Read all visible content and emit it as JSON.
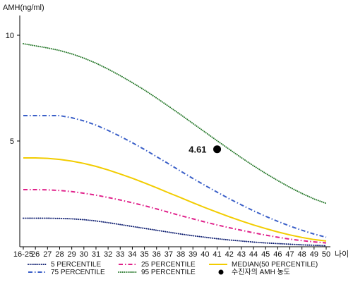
{
  "chart_data": {
    "type": "line",
    "ylabel": "AMH(ng/ml)",
    "xlabel": "나이",
    "categories": [
      "16-25",
      "26",
      "27",
      "28",
      "29",
      "30",
      "31",
      "32",
      "33",
      "34",
      "35",
      "36",
      "37",
      "38",
      "39",
      "40",
      "41",
      "42",
      "43",
      "44",
      "45",
      "46",
      "47",
      "48",
      "49",
      "50"
    ],
    "yticks": [
      "10",
      "5"
    ],
    "ylim": [
      0,
      11
    ],
    "grid": false,
    "legend_position": "bottom",
    "series": [
      {
        "name": "5 PERCENTILE",
        "color": "#0a1a6e",
        "style": "dotted",
        "values": [
          1.35,
          1.35,
          1.35,
          1.34,
          1.32,
          1.28,
          1.22,
          1.14,
          1.05,
          0.96,
          0.87,
          0.78,
          0.69,
          0.6,
          0.52,
          0.45,
          0.38,
          0.32,
          0.27,
          0.22,
          0.18,
          0.15,
          0.12,
          0.09,
          0.07,
          0.05
        ]
      },
      {
        "name": "25 PERCENTILE",
        "color": "#e0208a",
        "style": "dashdot",
        "values": [
          2.7,
          2.7,
          2.69,
          2.66,
          2.61,
          2.53,
          2.44,
          2.33,
          2.21,
          2.08,
          1.94,
          1.79,
          1.63,
          1.47,
          1.32,
          1.17,
          1.03,
          0.9,
          0.78,
          0.66,
          0.55,
          0.45,
          0.36,
          0.29,
          0.23,
          0.18
        ]
      },
      {
        "name": "MEDIAN(50 PERCENTILE)",
        "color": "#f2cc00",
        "style": "solid",
        "values": [
          4.2,
          4.2,
          4.18,
          4.13,
          4.05,
          3.94,
          3.8,
          3.63,
          3.44,
          3.24,
          3.02,
          2.79,
          2.55,
          2.32,
          2.08,
          1.85,
          1.63,
          1.42,
          1.22,
          1.03,
          0.86,
          0.7,
          0.56,
          0.44,
          0.34,
          0.27
        ]
      },
      {
        "name": "75 PERCENTILE",
        "color": "#3a5fc8",
        "style": "dashdot",
        "values": [
          6.2,
          6.2,
          6.2,
          6.2,
          6.1,
          5.95,
          5.75,
          5.5,
          5.22,
          4.92,
          4.6,
          4.26,
          3.92,
          3.57,
          3.23,
          2.9,
          2.58,
          2.27,
          1.98,
          1.7,
          1.44,
          1.2,
          0.98,
          0.78,
          0.6,
          0.45
        ]
      },
      {
        "name": "95 PERCENTILE",
        "color": "#2e7d32",
        "style": "dotted",
        "values": [
          9.6,
          9.5,
          9.4,
          9.28,
          9.12,
          8.92,
          8.68,
          8.4,
          8.09,
          7.76,
          7.41,
          7.03,
          6.64,
          6.24,
          5.83,
          5.42,
          5.01,
          4.61,
          4.21,
          3.83,
          3.47,
          3.13,
          2.81,
          2.52,
          2.26,
          2.05
        ]
      }
    ],
    "highlight": {
      "name": "수진자의 AMH 농도",
      "x": "41",
      "y": 4.61,
      "label": "4.61",
      "color": "#000000"
    },
    "legend_order": [
      "5 PERCENTILE",
      "25 PERCENTILE",
      "MEDIAN(50 PERCENTILE)",
      "75 PERCENTILE",
      "95 PERCENTILE",
      "수진자의 AMH 농도"
    ]
  }
}
